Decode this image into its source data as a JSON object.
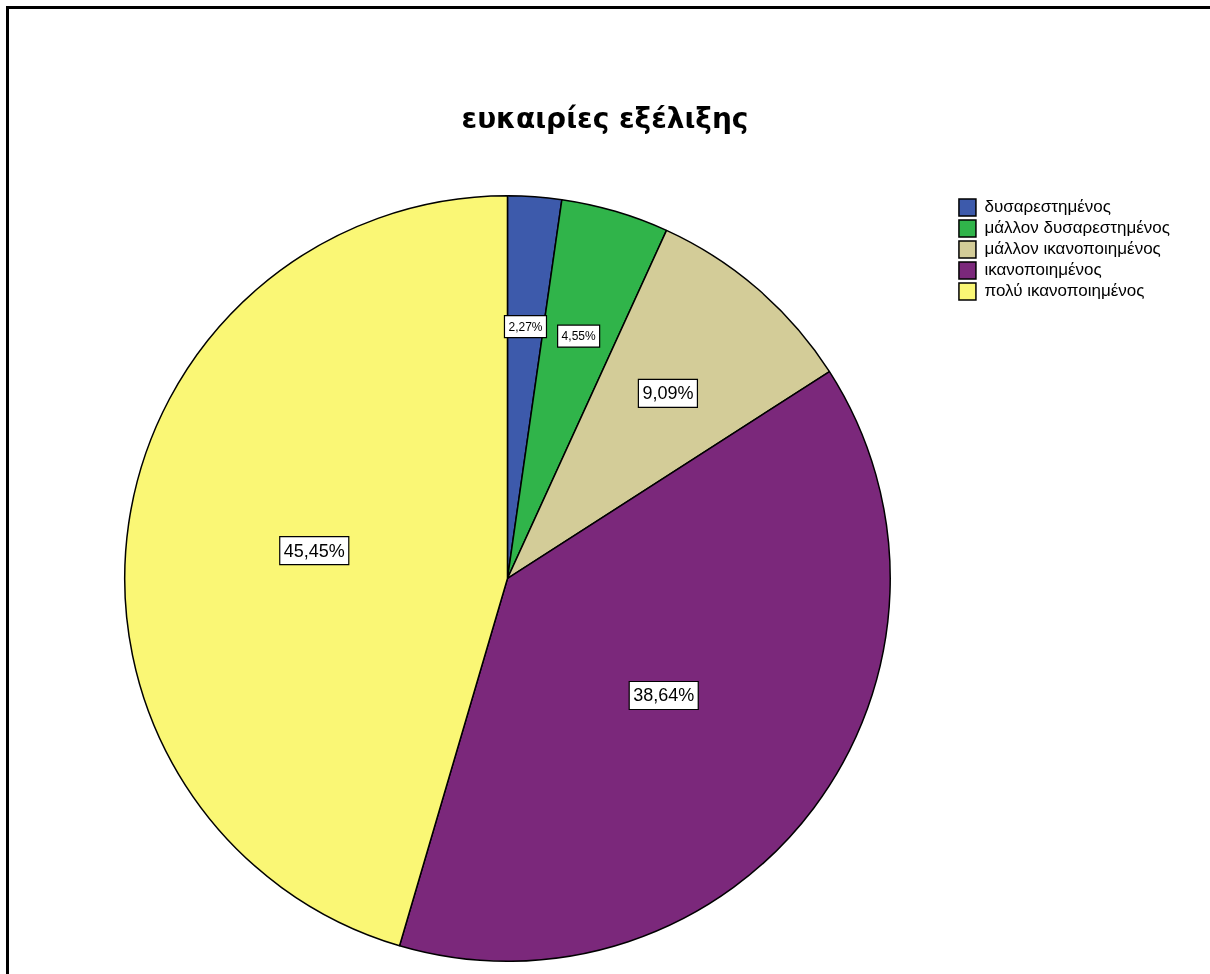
{
  "chart_data": {
    "type": "pie",
    "title": "ευκαιρίες εξέλιξης",
    "categories": [
      "δυσαρεστημένος",
      "μάλλον δυσαρεστημένος",
      "μάλλον ικανοποιημένος",
      "ικανοποιημένος",
      "πολύ ικανοποιημένος"
    ],
    "values": [
      2.27,
      4.55,
      9.09,
      38.64,
      45.45
    ],
    "colors": [
      "#3d5aab",
      "#30b44a",
      "#d3cc98",
      "#7b287b",
      "#faf775"
    ],
    "value_labels": [
      "2,27%",
      "4,55%",
      "9,09%",
      "38,64%",
      "45,45%"
    ],
    "legend": "top right"
  }
}
